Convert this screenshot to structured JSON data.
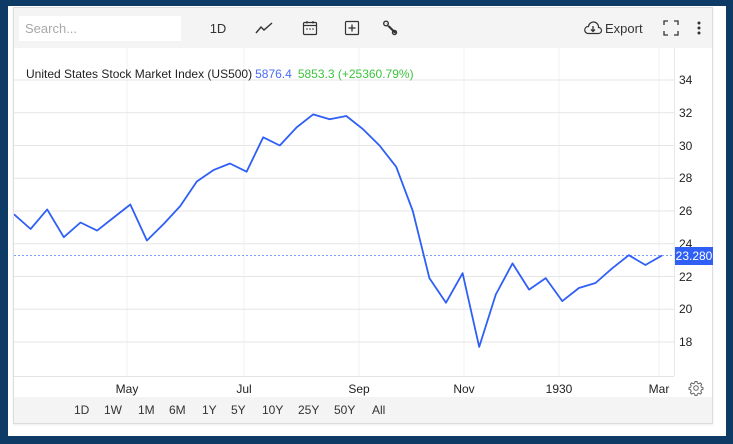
{
  "toolbar": {
    "search_placeholder": "Search...",
    "interval_label": "1D",
    "export_label": "Export",
    "icons": [
      "line-chart-icon",
      "calendar-icon",
      "add-indicator-icon",
      "wrench-icon",
      "cloud-download-icon",
      "fullscreen-icon",
      "more-vertical-icon"
    ]
  },
  "legend": {
    "title": "United States Stock Market Index (US500)",
    "last": "5876.4",
    "change": "5853.3 (+25360.79%)"
  },
  "price_tag": "23.280",
  "range_buttons": [
    "1D",
    "1W",
    "1M",
    "6M",
    "1Y",
    "5Y",
    "10Y",
    "25Y",
    "50Y",
    "All"
  ],
  "colors": {
    "line": "#2f5ff5",
    "frame": "#0d3b66",
    "legend_last": "#4a6cf7",
    "legend_change": "#3cc43c",
    "price_tag_bg": "#2f5ff5"
  },
  "chart_data": {
    "type": "line",
    "title": "United States Stock Market Index (US500)",
    "xlabel": "",
    "ylabel": "",
    "x_ticks": [
      "May",
      "Jul",
      "Sep",
      "Nov",
      "1930",
      "Mar"
    ],
    "y_ticks": [
      18,
      20,
      22,
      24,
      26,
      28,
      30,
      32,
      34
    ],
    "ylim": [
      16.5,
      35
    ],
    "grid": true,
    "last_price": 23.28,
    "series": [
      {
        "name": "US500",
        "x": [
          "Mar-1929",
          "Mar",
          "Apr",
          "Apr",
          "Apr",
          "May",
          "May",
          "May",
          "Jun",
          "Jun",
          "Jun",
          "Jul",
          "Jul",
          "Jul",
          "Aug",
          "Aug",
          "Aug",
          "Sep",
          "Sep",
          "Sep",
          "Sep",
          "Oct",
          "Oct",
          "Oct",
          "Oct",
          "Oct",
          "Oct",
          "Nov",
          "Nov",
          "Nov",
          "Nov",
          "Dec",
          "Dec",
          "Dec",
          "Jan-1930",
          "Jan",
          "Feb",
          "Feb",
          "Mar",
          "Mar"
        ],
        "values": [
          25.8,
          24.9,
          26.1,
          24.4,
          25.3,
          24.8,
          25.6,
          26.4,
          24.2,
          25.2,
          26.3,
          27.8,
          28.5,
          28.9,
          28.4,
          30.5,
          30.0,
          31.1,
          31.9,
          31.6,
          31.8,
          31.0,
          30.0,
          28.7,
          26.0,
          21.9,
          20.4,
          22.2,
          17.7,
          20.9,
          22.8,
          21.2,
          21.9,
          20.5,
          21.3,
          21.6,
          22.5,
          23.3,
          22.7,
          23.28
        ]
      }
    ]
  }
}
